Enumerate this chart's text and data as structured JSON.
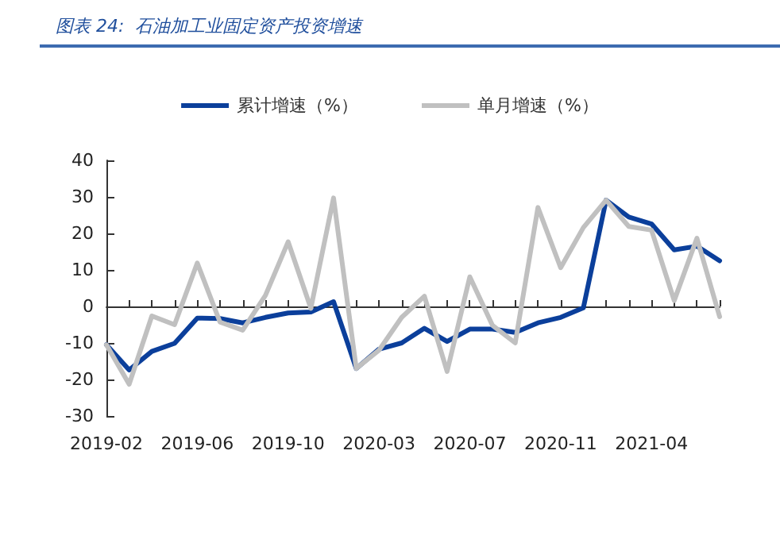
{
  "chart_data": {
    "type": "line",
    "title": "图表 24:  石油加工业固定资产投资增速",
    "categories": [
      "2019-02",
      null,
      null,
      null,
      "2019-06",
      null,
      null,
      null,
      "2019-10",
      null,
      null,
      null,
      "2020-03",
      null,
      null,
      null,
      "2020-07",
      null,
      null,
      null,
      "2020-11",
      null,
      null,
      null,
      "2021-04",
      null,
      null,
      null
    ],
    "series": [
      {
        "name": "累计增速（%）",
        "color": "#0b3f9b",
        "values": [
          -10.5,
          -17.4,
          -12.3,
          -10.1,
          -3.2,
          -3.3,
          -4.5,
          -3,
          -1.8,
          -1.5,
          1.3,
          -17,
          -11.7,
          -10,
          -6,
          -9.6,
          -6.2,
          -6.2,
          -7.1,
          -4.5,
          -3,
          -0.4,
          29.1,
          24.5,
          22.6,
          15.5,
          16.5,
          12.5
        ]
      },
      {
        "name": "单月增速（%）",
        "color": "#c0c0c0",
        "values": [
          -10.5,
          -21.3,
          -2.6,
          -5,
          11.9,
          -4.3,
          -6.5,
          3,
          17.7,
          -0.5,
          29.7,
          -17,
          -12,
          -3,
          2.8,
          -17.8,
          8.1,
          -5.2,
          -10,
          27.1,
          10.6,
          21.6,
          29.1,
          21.9,
          20.9,
          1.6,
          18.7,
          -2.8
        ]
      }
    ],
    "ylim": [
      -30,
      40
    ],
    "yticks": [
      -30,
      -20,
      -10,
      0,
      10,
      20,
      30,
      40
    ],
    "legend": "top",
    "marker": "none",
    "line_style": "solid"
  }
}
